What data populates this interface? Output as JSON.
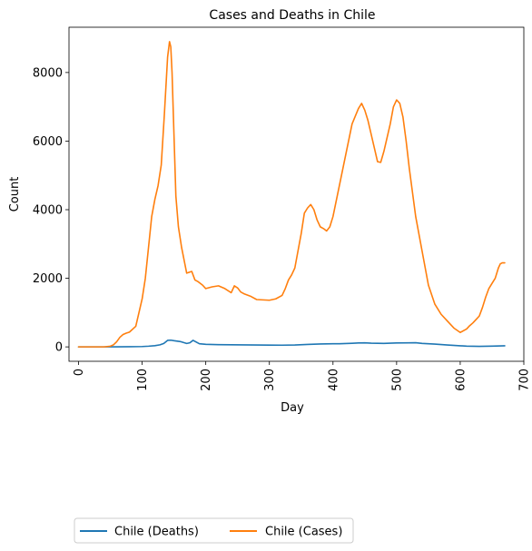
{
  "chart_data": {
    "type": "line",
    "title": "Cases and Deaths in Chile",
    "xlabel": "Day",
    "ylabel": "Count",
    "xlim": [
      -15,
      700
    ],
    "ylim": [
      -420,
      9320
    ],
    "xticks": [
      0,
      100,
      200,
      300,
      400,
      500,
      600,
      700
    ],
    "yticks": [
      0,
      2000,
      4000,
      6000,
      8000
    ],
    "grid": false,
    "legend_placement": "below-left",
    "series": [
      {
        "name": "Chile (Deaths)",
        "color": "#1f77b4",
        "x": [
          0,
          20,
          40,
          60,
          80,
          100,
          110,
          120,
          128,
          134,
          140,
          145,
          150,
          160,
          170,
          175,
          180,
          185,
          190,
          200,
          220,
          240,
          260,
          280,
          300,
          320,
          340,
          360,
          380,
          400,
          410,
          420,
          430,
          440,
          450,
          460,
          480,
          500,
          520,
          530,
          540,
          560,
          580,
          600,
          610,
          620,
          630,
          650,
          670
        ],
        "y": [
          0,
          0,
          0,
          2,
          5,
          10,
          20,
          35,
          60,
          100,
          190,
          195,
          180,
          155,
          100,
          120,
          190,
          140,
          90,
          75,
          65,
          60,
          58,
          55,
          52,
          50,
          55,
          72,
          85,
          90,
          92,
          98,
          105,
          115,
          118,
          108,
          102,
          115,
          118,
          120,
          100,
          80,
          55,
          32,
          22,
          18,
          15,
          22,
          32
        ]
      },
      {
        "name": "Chile (Cases)",
        "color": "#ff7f0e",
        "x": [
          0,
          20,
          40,
          50,
          55,
          60,
          65,
          70,
          75,
          80,
          90,
          95,
          100,
          105,
          110,
          115,
          120,
          125,
          130,
          135,
          140,
          143,
          145,
          147,
          150,
          153,
          157,
          162,
          170,
          178,
          183,
          188,
          195,
          200,
          210,
          220,
          230,
          240,
          245,
          250,
          255,
          260,
          270,
          280,
          290,
          300,
          310,
          320,
          325,
          330,
          335,
          340,
          345,
          350,
          355,
          360,
          365,
          370,
          375,
          380,
          385,
          390,
          395,
          400,
          410,
          420,
          430,
          440,
          445,
          450,
          455,
          460,
          465,
          470,
          475,
          480,
          485,
          490,
          495,
          500,
          505,
          510,
          515,
          520,
          530,
          540,
          550,
          560,
          570,
          580,
          590,
          600,
          610,
          615,
          620,
          625,
          630,
          635,
          640,
          645,
          650,
          655,
          660,
          663,
          666,
          670
        ],
        "y": [
          0,
          0,
          0,
          20,
          60,
          150,
          280,
          360,
          400,
          430,
          600,
          1000,
          1400,
          2000,
          2900,
          3800,
          4300,
          4700,
          5300,
          6800,
          8450,
          8900,
          8750,
          8000,
          6200,
          4400,
          3500,
          2900,
          2150,
          2200,
          1950,
          1900,
          1800,
          1700,
          1750,
          1780,
          1700,
          1580,
          1780,
          1720,
          1600,
          1550,
          1480,
          1380,
          1370,
          1360,
          1400,
          1500,
          1700,
          1950,
          2100,
          2300,
          2800,
          3300,
          3900,
          4050,
          4150,
          4000,
          3700,
          3500,
          3450,
          3380,
          3500,
          3800,
          4700,
          5600,
          6500,
          6950,
          7100,
          6900,
          6600,
          6200,
          5800,
          5400,
          5380,
          5700,
          6100,
          6500,
          7000,
          7200,
          7100,
          6700,
          6000,
          5200,
          3800,
          2800,
          1800,
          1250,
          950,
          750,
          550,
          420,
          520,
          620,
          700,
          800,
          900,
          1150,
          1450,
          1700,
          1850,
          2000,
          2300,
          2420,
          2450,
          2450
        ]
      }
    ]
  }
}
